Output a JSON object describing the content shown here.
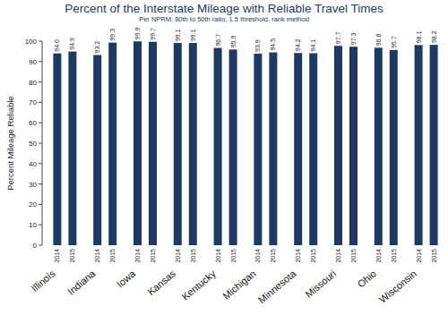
{
  "chart_data": {
    "type": "bar",
    "title": "Percent of the Interstate Mileage with Reliable Travel Times",
    "subtitle": "Per NPRM, 80th to 50th ratio, 1.5 threshold, rank method",
    "y_label": "Percent Mileage Reliable",
    "categories": [
      "Illinois",
      "Indiana",
      "Iowa",
      "Kansas",
      "Kentucky",
      "Michigan",
      "Minnesota",
      "Missouri",
      "Ohio",
      "Wisconsin"
    ],
    "series": [
      {
        "name": "2014",
        "color": "#1d3a63",
        "values": [
          94.0,
          93.2,
          99.9,
          99.1,
          96.7,
          93.9,
          94.2,
          97.7,
          96.8,
          98.1
        ],
        "value_labels": [
          "94.0",
          "93.2",
          "99.9",
          "99.1",
          "96.7",
          "93.9",
          "94.2",
          "97.7",
          "96.8",
          "98.1"
        ]
      },
      {
        "name": "2015",
        "color": "#1d3a63",
        "values": [
          94.9,
          99.3,
          99.7,
          99.1,
          95.9,
          94.5,
          94.1,
          97.3,
          95.7,
          98.2
        ],
        "value_labels": [
          "94.9",
          "99.3",
          "99.7",
          "99.1",
          "95.9",
          "94.5",
          "94.1",
          "97.3",
          "95.7",
          "98.2"
        ]
      }
    ],
    "ylim": [
      0,
      100
    ],
    "yticks": [
      0,
      10,
      20,
      30,
      40,
      50,
      60,
      70,
      80,
      90,
      100
    ],
    "grid": false,
    "data_labels": true
  }
}
